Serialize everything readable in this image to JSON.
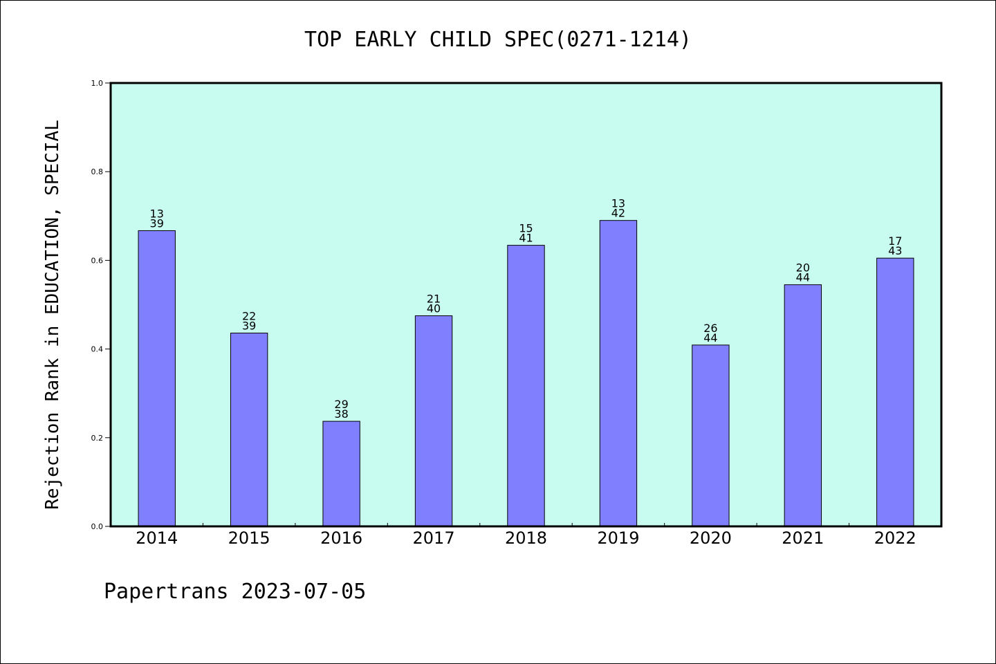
{
  "chart_data": {
    "type": "bar",
    "title": "TOP EARLY CHILD SPEC(0271-1214)",
    "ylabel": "Rejection Rank in EDUCATION, SPECIAL",
    "xlabel": "",
    "ylim": [
      0,
      1.0
    ],
    "yticks": [
      "0.0",
      "0.2",
      "0.4",
      "0.6",
      "0.8",
      "1.0"
    ],
    "categories": [
      "2014",
      "2015",
      "2016",
      "2017",
      "2018",
      "2019",
      "2020",
      "2021",
      "2022"
    ],
    "values": [
      0.667,
      0.436,
      0.237,
      0.475,
      0.634,
      0.69,
      0.409,
      0.545,
      0.605
    ],
    "bar_labels": [
      [
        "13",
        "39"
      ],
      [
        "22",
        "39"
      ],
      [
        "29",
        "38"
      ],
      [
        "21",
        "40"
      ],
      [
        "15",
        "41"
      ],
      [
        "13",
        "42"
      ],
      [
        "26",
        "44"
      ],
      [
        "20",
        "44"
      ],
      [
        "17",
        "43"
      ]
    ],
    "grid": false,
    "colors": {
      "bar": "#8080ff",
      "plot_background": "#c8fcf0",
      "axis": "#000000"
    }
  },
  "footer": {
    "text": "Papertrans 2023-07-05"
  }
}
